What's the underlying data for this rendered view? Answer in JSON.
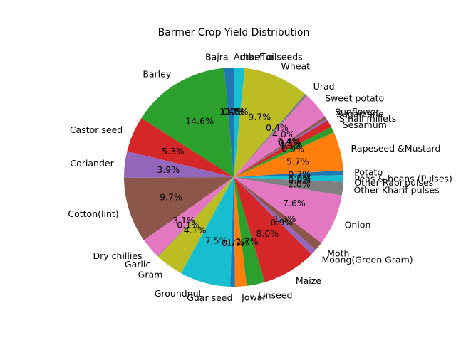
{
  "chart_data": {
    "type": "pie",
    "title": "Barmer Crop Yield Distribution",
    "start_angle_deg": 90,
    "direction": "counterclockwise",
    "slices": [
      {
        "label": "Arhar/Tur",
        "value": 0.0,
        "pct_label": "0.0%",
        "color": "#ff7f0e"
      },
      {
        "label": "Bajra",
        "value": 1.4,
        "pct_label": "1.4%",
        "color": "#1f77b4"
      },
      {
        "label": "Barley",
        "value": 14.6,
        "pct_label": "14.6%",
        "color": "#2ca02c"
      },
      {
        "label": "Castor seed",
        "value": 5.3,
        "pct_label": "5.3%",
        "color": "#d62728"
      },
      {
        "label": "Coriander",
        "value": 3.9,
        "pct_label": "3.9%",
        "color": "#9467bd"
      },
      {
        "label": "Cotton(lint)",
        "value": 9.7,
        "pct_label": "9.7%",
        "color": "#8c564b"
      },
      {
        "label": "Dry chillies",
        "value": 3.1,
        "pct_label": "3.1%",
        "color": "#e377c2"
      },
      {
        "label": "Garlic",
        "value": 0.1,
        "pct_label": "0.1%",
        "color": "#7f7f7f"
      },
      {
        "label": "Gram",
        "value": 4.1,
        "pct_label": "4.1%",
        "color": "#bcbd22"
      },
      {
        "label": "Groundnut",
        "value": 7.5,
        "pct_label": "7.5%",
        "color": "#17becf"
      },
      {
        "label": "Guar seed",
        "value": 0.7,
        "pct_label": "0.7%",
        "color": "#1f77b4"
      },
      {
        "label": "Jowar",
        "value": 1.7,
        "pct_label": "1.7%",
        "color": "#ff7f0e"
      },
      {
        "label": "Linseed",
        "value": 2.7,
        "pct_label": "2.7%",
        "color": "#2ca02c"
      },
      {
        "label": "Maize",
        "value": 8.0,
        "pct_label": "8.0%",
        "color": "#d62728"
      },
      {
        "label": "Moong(Green Gram)",
        "value": 0.9,
        "pct_label": "0.9%",
        "color": "#9467bd"
      },
      {
        "label": "Moth",
        "value": 1.3,
        "pct_label": "1.3%",
        "color": "#8c564b"
      },
      {
        "label": "Onion",
        "value": 7.6,
        "pct_label": "7.6%",
        "color": "#e377c2"
      },
      {
        "label": "Other Kharif pulses",
        "value": 2.0,
        "pct_label": "2.0%",
        "color": "#7f7f7f"
      },
      {
        "label": "Other Rabi pulses",
        "value": 0.0,
        "pct_label": "0.0%",
        "color": "#bcbd22"
      },
      {
        "label": "Peas & beans (Pulses)",
        "value": 1.0,
        "pct_label": "1.0%",
        "color": "#17becf"
      },
      {
        "label": "Potato",
        "value": 0.7,
        "pct_label": "0.7%",
        "color": "#1f77b4"
      },
      {
        "label": "Rapeseed &Mustard",
        "value": 5.7,
        "pct_label": "5.7%",
        "color": "#ff7f0e"
      },
      {
        "label": "Sesamum",
        "value": 0.9,
        "pct_label": "0.9%",
        "color": "#2ca02c"
      },
      {
        "label": "Small millets",
        "value": 1.1,
        "pct_label": "1.1%",
        "color": "#d62728"
      },
      {
        "label": "Sugarcane",
        "value": 0.3,
        "pct_label": "0.3%",
        "color": "#9467bd"
      },
      {
        "label": "Sunflower",
        "value": 0.4,
        "pct_label": "0.4%",
        "color": "#8c564b"
      },
      {
        "label": "Sweet potato",
        "value": 4.0,
        "pct_label": "4.0%",
        "color": "#e377c2"
      },
      {
        "label": "Urad",
        "value": 0.4,
        "pct_label": "0.4%",
        "color": "#7f7f7f"
      },
      {
        "label": "Wheat",
        "value": 9.7,
        "pct_label": "9.7%",
        "color": "#bcbd22"
      },
      {
        "label": "other oilseeds",
        "value": 1.6,
        "pct_label": "1.6%",
        "color": "#17becf"
      }
    ]
  }
}
